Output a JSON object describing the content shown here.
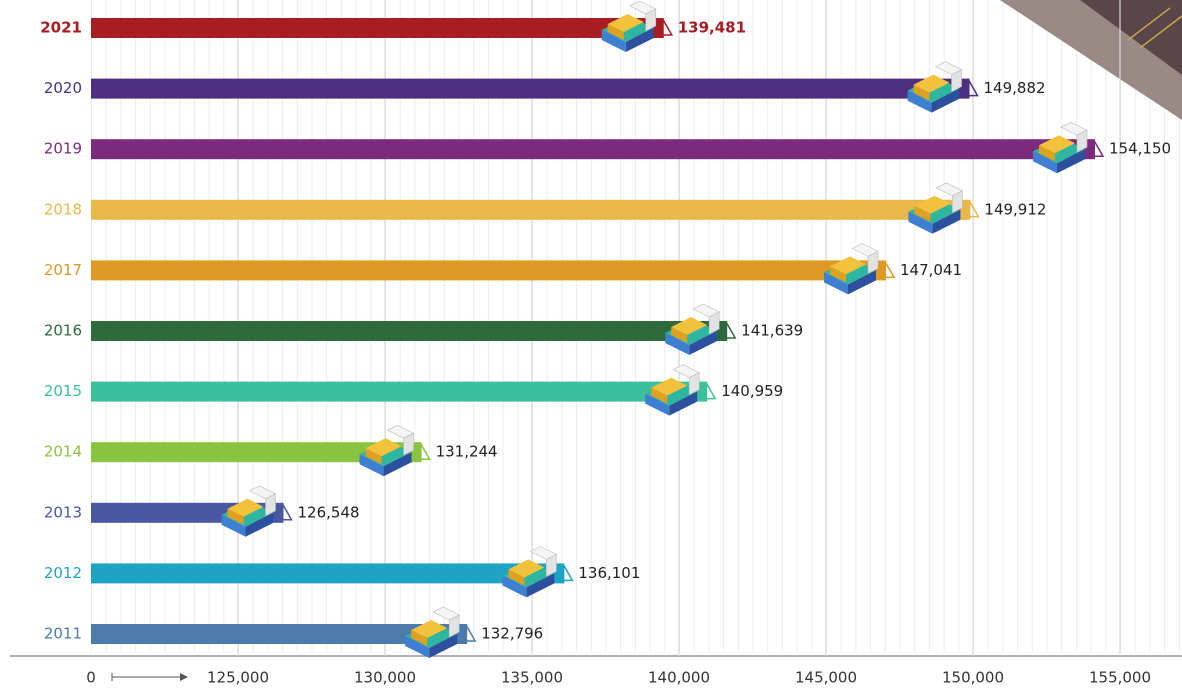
{
  "chart_data": {
    "type": "bar",
    "orientation": "horizontal",
    "categories": [
      "2021",
      "2020",
      "2019",
      "2018",
      "2017",
      "2016",
      "2015",
      "2014",
      "2013",
      "2012",
      "2011"
    ],
    "values": [
      139481,
      149882,
      154150,
      149912,
      147041,
      141639,
      140959,
      131244,
      126548,
      136101,
      132796
    ],
    "value_labels": [
      "139,481",
      "149,882",
      "154,150",
      "149,912",
      "147,041",
      "141,639",
      "140,959",
      "131,244",
      "126,548",
      "136,101",
      "132,796"
    ],
    "colors": [
      "#a81c24",
      "#4f2d7f",
      "#7b2a7e",
      "#e8b84a",
      "#de9a25",
      "#2e6a3c",
      "#3cbf9b",
      "#88c43f",
      "#4a57a3",
      "#1fa3c4",
      "#4b7aab"
    ],
    "xlim": [
      120000,
      157000
    ],
    "axis_break": true,
    "xticks": [
      0,
      {
        "value": 125000,
        "label": "125,000"
      },
      {
        "value": 130000,
        "label": "130,000"
      },
      {
        "value": 135000,
        "label": "135,000"
      },
      {
        "value": 140000,
        "label": "140,000"
      },
      {
        "value": 145000,
        "label": "145,000"
      },
      {
        "value": 150000,
        "label": "150,000"
      },
      {
        "value": 155000,
        "label": "155,000"
      }
    ],
    "grid": true
  }
}
